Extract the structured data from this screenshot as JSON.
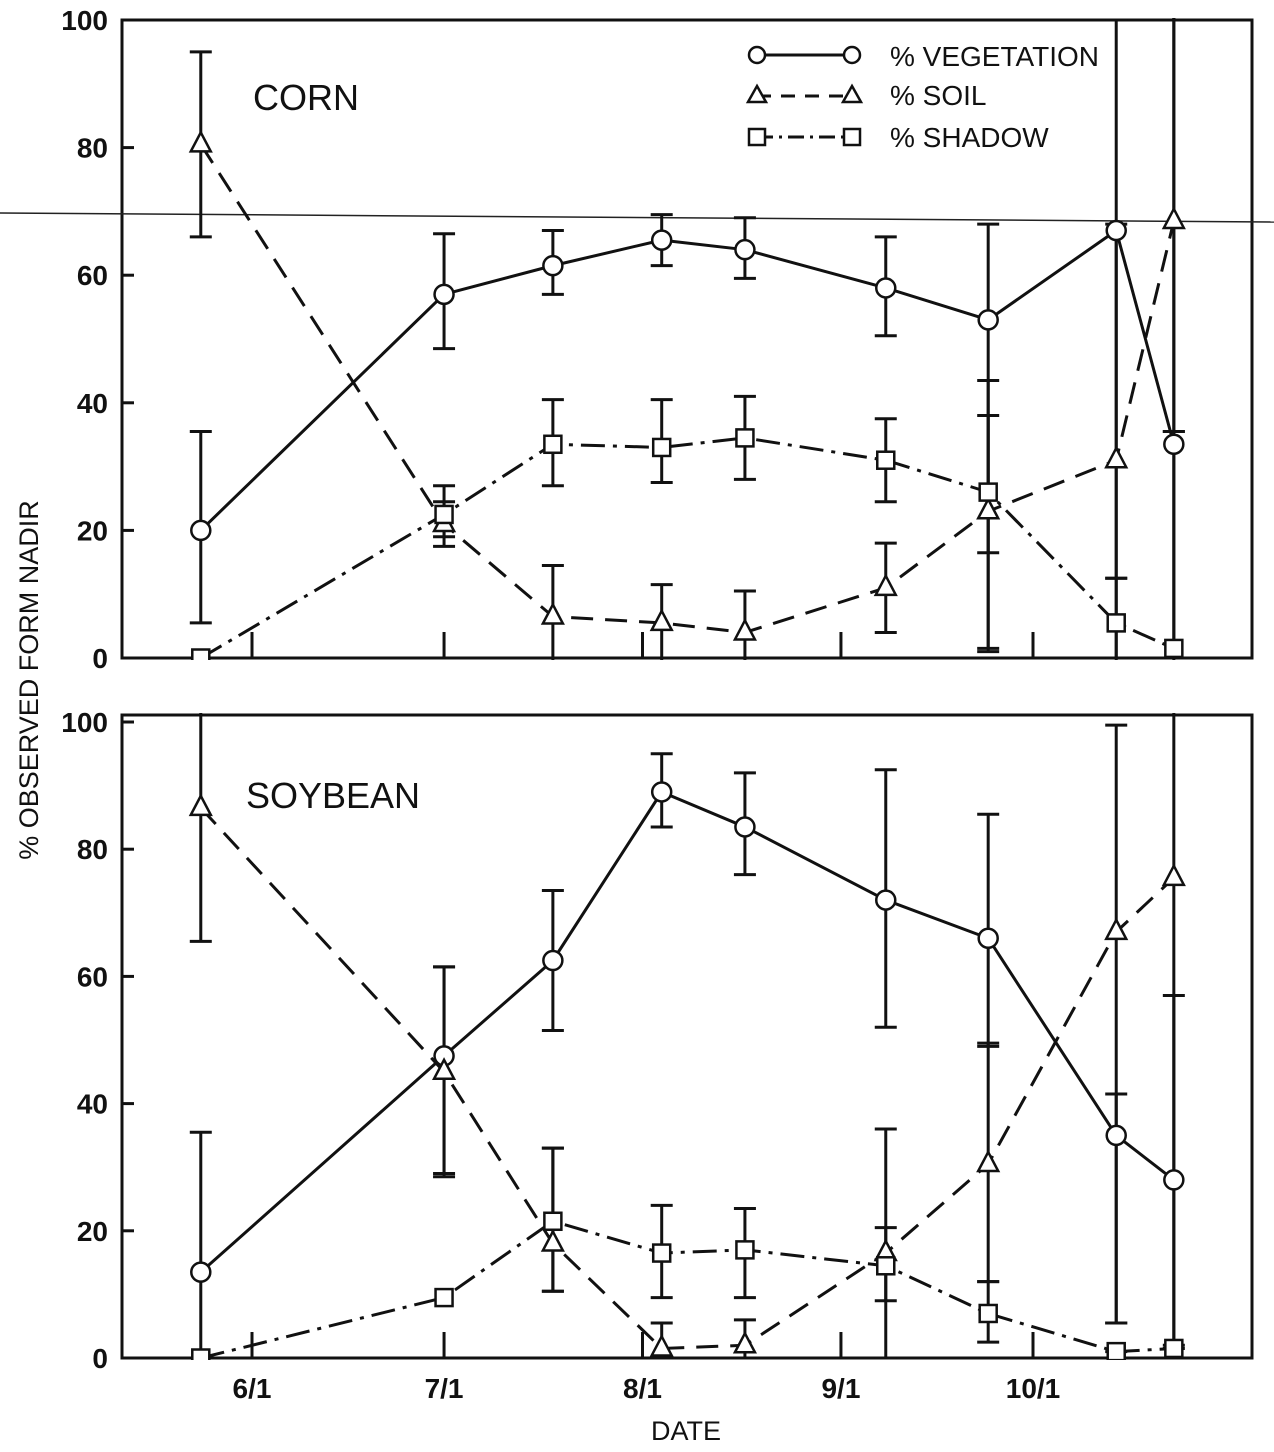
{
  "chart_data": {
    "type": "line",
    "xlabel": "DATE",
    "ylabel": "% OBSERVED FORM NADIR",
    "ylim": [
      0,
      100
    ],
    "yticks": [
      "0",
      "20",
      "40",
      "60",
      "80",
      "100"
    ],
    "xticks": [
      {
        "label": "6/1",
        "date": "6/1"
      },
      {
        "label": "7/1",
        "date": "7/1"
      },
      {
        "label": "8/1",
        "date": "8/1"
      },
      {
        "label": "9/1",
        "date": "9/1"
      },
      {
        "label": "10/1",
        "date": "10/1"
      }
    ],
    "x": [
      "5/24",
      "7/1",
      "7/18",
      "8/4",
      "8/17",
      "9/8",
      "9/24",
      "10/14",
      "10/23"
    ],
    "legend": [
      {
        "label": "% VEGETATION",
        "marker": "circle",
        "line": "solid"
      },
      {
        "label": "% SOIL",
        "marker": "triangle",
        "line": "dashed"
      },
      {
        "label": "% SHADOW",
        "marker": "square",
        "line": "dashdot"
      }
    ],
    "legend_position": "top-right",
    "panels": [
      {
        "label": "CORN",
        "series": [
          {
            "name": "% VEGETATION",
            "values": [
              20,
              57,
              61.5,
              65.5,
              64,
              58,
              53,
              67,
              33.5
            ],
            "err_low": [
              14.5,
              8.5,
              4.5,
              4,
              4.5,
              7.5,
              52,
              67,
              33.5
            ],
            "err_high": [
              15.5,
              9.5,
              5.5,
              4,
              5,
              8,
              15,
              33,
              69.5
            ]
          },
          {
            "name": "% SOIL",
            "values": [
              80.5,
              21,
              6.5,
              5.5,
              4,
              11,
              23,
              31,
              68.5
            ],
            "err_low": [
              14.5,
              3.5,
              8,
              6.5,
              6.5,
              7,
              6.5,
              18.5,
              33
            ],
            "err_high": [
              14.5,
              3.5,
              8,
              6,
              6.5,
              7,
              15,
              37,
              34.5
            ]
          },
          {
            "name": "% SHADOW",
            "values": [
              0,
              22.5,
              33.5,
              33,
              34.5,
              31,
              26,
              5.5,
              1.5
            ],
            "err_low": [
              0,
              3.5,
              6.5,
              5.5,
              6.5,
              6.5,
              24.5,
              10.5,
              3.5
            ],
            "err_high": [
              0,
              4.5,
              7,
              7.5,
              6.5,
              6.5,
              17.5,
              7,
              34
            ]
          }
        ]
      },
      {
        "label": "SOYBEAN",
        "series": [
          {
            "name": "% VEGETATION",
            "values": [
              13.5,
              47.5,
              62.5,
              89,
              83.5,
              72,
              66,
              35,
              28
            ],
            "err_low": [
              13.5,
              19,
              11,
              5.5,
              7.5,
              20,
              17,
              29.5,
              28
            ],
            "err_high": [
              22,
              14,
              11,
              6,
              8.5,
              20.5,
              19.5,
              6.5,
              29
            ]
          },
          {
            "name": "% SOIL",
            "values": [
              86.5,
              45,
              18,
              1.5,
              2,
              16.5,
              30.5,
              67,
              75.5
            ],
            "err_low": [
              21,
              16,
              7.5,
              1.5,
              2,
              7.5,
              18.5,
              61.5,
              73.5
            ],
            "err_high": [
              17,
              16.5,
              15,
              4,
              4,
              19.5,
              19,
              32.5,
              29.5
            ]
          },
          {
            "name": "% SHADOW",
            "values": [
              0,
              9.5,
              21.5,
              16.5,
              17,
              14.5,
              7,
              1,
              1.5
            ],
            "err_low": [
              0,
              0,
              11,
              7,
              7.5,
              14.5,
              4.5,
              1,
              1.5
            ],
            "err_high": [
              0,
              0,
              11.5,
              7.5,
              6.5,
              6,
              5,
              0,
              0
            ]
          }
        ]
      }
    ]
  }
}
